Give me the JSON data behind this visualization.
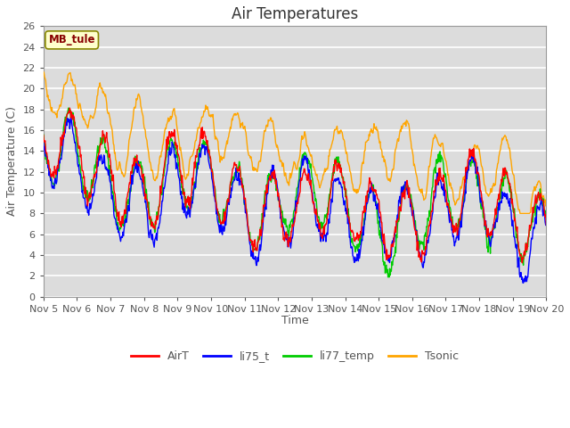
{
  "title": "Air Temperatures",
  "ylabel": "Air Temperature (C)",
  "xlabel": "Time",
  "annotation": "MB_tule",
  "ylim": [
    0,
    26
  ],
  "xtick_labels": [
    "Nov 5",
    "Nov 6",
    "Nov 7",
    "Nov 8",
    "Nov 9",
    "Nov 10",
    "Nov 11",
    "Nov 12",
    "Nov 13",
    "Nov 14",
    "Nov 15",
    "Nov 16",
    "Nov 17",
    "Nov 18",
    "Nov 19",
    "Nov 20"
  ],
  "colors": {
    "AirT": "#ff0000",
    "li75_t": "#0000ff",
    "li77_temp": "#00cc00",
    "Tsonic": "#ffa500"
  },
  "title_fontsize": 12,
  "label_fontsize": 9,
  "tick_fontsize": 8,
  "line_width": 1.0,
  "n_days": 15,
  "n_points": 900
}
